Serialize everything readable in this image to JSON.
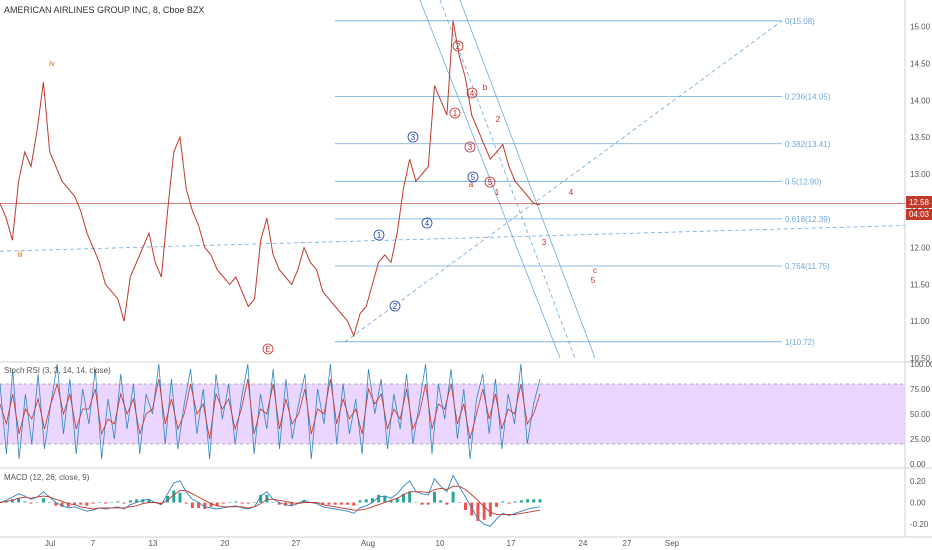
{
  "header": {
    "symbol": "AMERICAN AIRLINES GROUP INC, 8, Cboe BZX",
    "close_change_label": "12.58",
    "countdown": "04:03"
  },
  "colors": {
    "price": "#c0392b",
    "fib": "#6fa8dc",
    "wave_red": "#cc2a2a",
    "wave_blue": "#1c3faa",
    "wave_orange": "#d0731a",
    "stoch_k": "#2e86c1",
    "stoch_d": "#c0392b",
    "stoch_band": "#e6ccff",
    "macd": "#2e86c1",
    "signal": "#c0392b",
    "hist_pos": "#26a69a",
    "hist_neg": "#ef5350"
  },
  "indicators": {
    "stoch_label": "Stoch RSI (3, 3, 14, 14, close)",
    "macd_label": "MACD (12, 26, close, 9)"
  },
  "chart_data": [
    {
      "type": "line",
      "title": "AMERICAN AIRLINES GROUP INC, 8, Cboe BZX",
      "ylim": [
        10.5,
        15.2
      ],
      "y_ticks": [
        "15.00",
        "14.50",
        "14.00",
        "13.50",
        "13.00",
        "12.50",
        "12.00",
        "11.50",
        "11.00",
        "10.50"
      ],
      "x_ticks": [
        "Jul",
        "7",
        "13",
        "20",
        "27",
        "Aug",
        "10",
        "17",
        "24",
        "27",
        "Sep"
      ],
      "last_price": 12.58,
      "series": [
        {
          "values": [
            12.6,
            12.4,
            12.1,
            12.9,
            13.3,
            13.1,
            13.6,
            14.25,
            13.3,
            13.1,
            12.9,
            12.8,
            12.7,
            12.5,
            12.2,
            12.0,
            11.8,
            11.5,
            11.4,
            11.3,
            11.0,
            11.6,
            11.8,
            12.0,
            12.2,
            11.8,
            11.6,
            12.5,
            13.3,
            13.5,
            12.8,
            12.5,
            12.3,
            12.0,
            11.9,
            11.7,
            11.6,
            11.5,
            11.6,
            11.4,
            11.2,
            11.3,
            12.1,
            12.4,
            11.9,
            11.7,
            11.6,
            11.5,
            11.7,
            12.0,
            11.8,
            11.7,
            11.4,
            11.3,
            11.2,
            11.1,
            11.0,
            10.8,
            11.1,
            11.2,
            11.5,
            11.8,
            11.9,
            11.8,
            12.2,
            12.8,
            13.2,
            12.9,
            13.0,
            13.1,
            14.2,
            14.0,
            13.8,
            15.08,
            14.6,
            14.3,
            13.8,
            13.6,
            13.4,
            13.2,
            13.3,
            13.4,
            13.1,
            12.9,
            12.8,
            12.7,
            12.6,
            12.58
          ]
        }
      ],
      "fib_levels": [
        {
          "label": "0(15.08)",
          "value": 15.08
        },
        {
          "label": "0.236(14.05)",
          "value": 14.05
        },
        {
          "label": "0.382(13.41)",
          "value": 13.41
        },
        {
          "label": "0.5(12.90)",
          "value": 12.9
        },
        {
          "label": "0.618(12.39)",
          "value": 12.39
        },
        {
          "label": "0.764(11.75)",
          "value": 11.75
        },
        {
          "label": "1(10.72)",
          "value": 10.72
        }
      ],
      "wave_labels": [
        {
          "text": "iv",
          "color": "orange"
        },
        {
          "text": "iii",
          "color": "orange"
        },
        {
          "text": "E",
          "color": "red",
          "circled": true
        },
        {
          "text": "1",
          "color": "blue",
          "circled": true
        },
        {
          "text": "2",
          "color": "blue",
          "circled": true
        },
        {
          "text": "3",
          "color": "blue",
          "circled": true
        },
        {
          "text": "4",
          "color": "blue",
          "circled": true
        },
        {
          "text": "5",
          "color": "blue",
          "circled": true
        },
        {
          "text": "1",
          "color": "red",
          "circled": true
        },
        {
          "text": "2",
          "color": "red",
          "circled": true
        },
        {
          "text": "3",
          "color": "red",
          "circled": true
        },
        {
          "text": "4",
          "color": "red",
          "circled": true
        },
        {
          "text": "5",
          "color": "red",
          "circled": true
        },
        {
          "text": "a",
          "color": "red"
        },
        {
          "text": "b",
          "color": "red"
        },
        {
          "text": "1",
          "color": "red"
        },
        {
          "text": "2",
          "color": "red"
        },
        {
          "text": "3",
          "color": "red"
        },
        {
          "text": "4",
          "color": "red"
        },
        {
          "text": "5",
          "color": "red"
        },
        {
          "text": "c",
          "color": "red"
        }
      ]
    },
    {
      "type": "line",
      "title": "Stoch RSI (3, 3, 14, 14, close)",
      "ylim": [
        0,
        100
      ],
      "y_ticks": [
        "100.00",
        "75.00",
        "50.00",
        "25.00",
        "0.00"
      ],
      "bands": [
        20,
        80
      ],
      "series": [
        {
          "name": "K",
          "values": [
            80,
            10,
            95,
            5,
            70,
            20,
            90,
            15,
            60,
            100,
            30,
            85,
            10,
            75,
            40,
            95,
            5,
            65,
            25,
            90,
            35,
            80,
            10,
            70,
            50,
            100,
            20,
            85,
            15,
            60,
            95,
            30,
            75,
            5,
            90,
            45,
            80,
            20,
            65,
            100,
            10,
            70,
            35,
            95,
            15,
            85,
            25,
            60,
            90,
            5,
            75,
            40,
            100,
            20,
            80,
            30,
            65,
            10,
            95,
            50,
            85,
            15,
            70,
            35,
            90,
            20,
            60,
            100,
            10,
            80,
            45,
            95,
            25,
            75,
            5,
            65,
            90,
            30,
            85,
            15,
            70,
            40,
            100,
            20,
            60,
            85
          ]
        },
        {
          "name": "D",
          "values": [
            60,
            40,
            70,
            30,
            55,
            45,
            65,
            35,
            60,
            80,
            50,
            70,
            35,
            55,
            55,
            75,
            30,
            45,
            40,
            70,
            50,
            65,
            30,
            50,
            55,
            85,
            40,
            65,
            35,
            50,
            80,
            50,
            60,
            25,
            70,
            55,
            65,
            35,
            55,
            85,
            30,
            55,
            50,
            80,
            35,
            65,
            40,
            50,
            75,
            30,
            55,
            50,
            85,
            40,
            65,
            45,
            55,
            30,
            75,
            60,
            70,
            35,
            55,
            45,
            75,
            35,
            50,
            80,
            35,
            60,
            55,
            80,
            40,
            60,
            25,
            50,
            75,
            45,
            70,
            35,
            55,
            50,
            80,
            40,
            50,
            70
          ]
        }
      ]
    },
    {
      "type": "line",
      "title": "MACD (12, 26, close, 9)",
      "ylim": [
        -0.3,
        0.3
      ],
      "y_ticks": [
        "0.20",
        "0.00",
        "-0.20"
      ],
      "series": [
        {
          "name": "MACD",
          "values": [
            0.0,
            0.02,
            0.05,
            0.08,
            0.06,
            0.03,
            0.05,
            0.1,
            0.05,
            0.0,
            -0.03,
            -0.05,
            -0.04,
            -0.06,
            -0.08,
            -0.07,
            -0.05,
            -0.06,
            -0.05,
            -0.04,
            -0.06,
            -0.02,
            0.0,
            0.02,
            0.03,
            0.0,
            -0.02,
            0.08,
            0.18,
            0.2,
            0.1,
            0.03,
            0.0,
            -0.04,
            -0.05,
            -0.06,
            -0.05,
            -0.04,
            -0.03,
            -0.05,
            -0.06,
            -0.04,
            0.06,
            0.1,
            0.03,
            0.0,
            -0.02,
            -0.03,
            -0.01,
            0.02,
            0.0,
            -0.01,
            -0.04,
            -0.05,
            -0.06,
            -0.07,
            -0.08,
            -0.1,
            -0.05,
            -0.03,
            0.0,
            0.05,
            0.06,
            0.04,
            0.08,
            0.15,
            0.2,
            0.1,
            0.08,
            0.07,
            0.22,
            0.15,
            0.1,
            0.25,
            0.15,
            0.05,
            -0.05,
            -0.15,
            -0.2,
            -0.22,
            -0.15,
            -0.1,
            -0.12,
            -0.1,
            -0.08,
            -0.06,
            -0.05,
            -0.04
          ]
        },
        {
          "name": "Signal",
          "values": [
            0.0,
            0.01,
            0.02,
            0.04,
            0.05,
            0.04,
            0.05,
            0.06,
            0.05,
            0.03,
            0.01,
            -0.01,
            -0.02,
            -0.04,
            -0.05,
            -0.06,
            -0.05,
            -0.05,
            -0.05,
            -0.05,
            -0.05,
            -0.04,
            -0.03,
            -0.01,
            0.0,
            0.0,
            -0.01,
            0.02,
            0.07,
            0.11,
            0.11,
            0.08,
            0.05,
            0.02,
            -0.01,
            -0.03,
            -0.04,
            -0.04,
            -0.04,
            -0.04,
            -0.05,
            -0.04,
            -0.01,
            0.03,
            0.03,
            0.02,
            0.01,
            0.0,
            -0.01,
            0.0,
            0.0,
            0.0,
            -0.02,
            -0.03,
            -0.04,
            -0.05,
            -0.06,
            -0.07,
            -0.07,
            -0.06,
            -0.04,
            -0.02,
            0.0,
            0.02,
            0.04,
            0.07,
            0.1,
            0.1,
            0.1,
            0.09,
            0.12,
            0.13,
            0.12,
            0.15,
            0.15,
            0.12,
            0.07,
            0.02,
            -0.04,
            -0.09,
            -0.11,
            -0.11,
            -0.11,
            -0.11,
            -0.1,
            -0.09,
            -0.08,
            -0.07
          ]
        }
      ]
    }
  ]
}
